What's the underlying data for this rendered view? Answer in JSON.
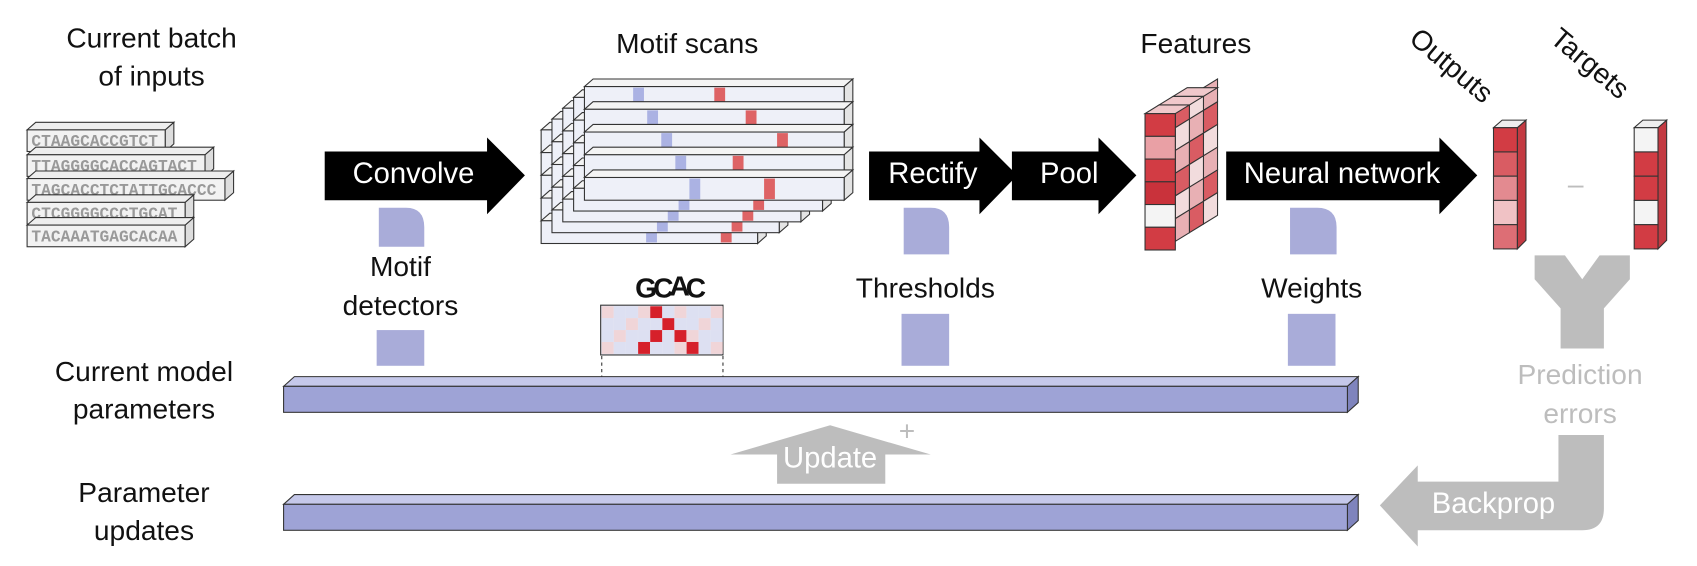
{
  "inputs": {
    "title": [
      "Current batch",
      "of inputs"
    ],
    "sequences": [
      "CTAAGCACCGTCT",
      "TTAGGGGCACCAGTACT",
      "TAGCACCTCTATTGCACCC",
      "CTCGGGGCCCTGCAT",
      "TACAAATGAGCACAA"
    ]
  },
  "stages": {
    "motif_scans": "Motif scans",
    "features": "Features",
    "outputs": "Outputs",
    "targets": "Targets",
    "minus": "–"
  },
  "arrows": {
    "convolve": "Convolve",
    "rectify": "Rectify",
    "pool": "Pool",
    "neural_network": "Neural network",
    "update": "Update",
    "plus": "+",
    "backprop": "Backprop"
  },
  "parameters": {
    "motif_detectors": [
      "Motif",
      "detectors"
    ],
    "logo": [
      "G",
      "C",
      "A",
      "C"
    ],
    "thresholds": "Thresholds",
    "weights": "Weights"
  },
  "rows": {
    "current_model": [
      "Current model",
      "parameters"
    ],
    "parameter_updates": [
      "Parameter",
      "updates"
    ],
    "prediction_errors": [
      "Prediction",
      "errors"
    ]
  }
}
